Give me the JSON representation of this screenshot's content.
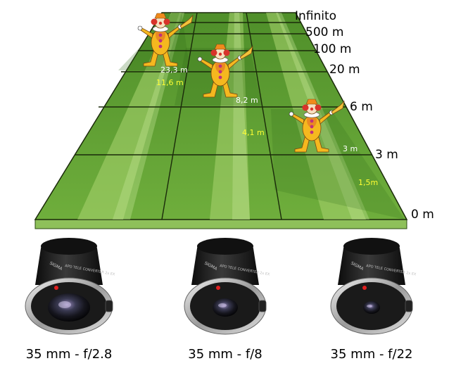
{
  "distance_scale": {
    "infinity": "Infinito",
    "d500": "500 m",
    "d100": "100 m",
    "d20": "20 m",
    "d6": "6 m",
    "d3": "3 m",
    "d0": "0 m"
  },
  "field_labels": {
    "far_white": "23,3 m",
    "far_yellow": "11,6 m",
    "mid_white": "8,2 m",
    "mid_yellow": "4,1 m",
    "near_white": "3 m",
    "near_yellow": "1,5m"
  },
  "lenses": [
    {
      "caption": "35 mm - f/2.8",
      "aperture": "f/2.8",
      "brand_text": "SIGMA",
      "model_text": "APO TELE CONVERTER 2x EX"
    },
    {
      "caption": "35 mm - f/8",
      "aperture": "f/8",
      "brand_text": "SIGMA",
      "model_text": "APO TELE CONVERTER 2x EX"
    },
    {
      "caption": "35 mm - f/22",
      "aperture": "f/22",
      "brand_text": "SIGMA",
      "model_text": "APO TELE CONVERTER 2x EX"
    }
  ],
  "colors": {
    "grass_light": "#8cc45a",
    "grass_mid": "#5f9e32",
    "grass_dark": "#3f7a22",
    "field_edge": "#6ea83a",
    "clown_body": "#f5b81f",
    "clown_dot": "#c0307a",
    "clown_hair": "#d8332a",
    "lens_body": "#1a1a1a"
  }
}
